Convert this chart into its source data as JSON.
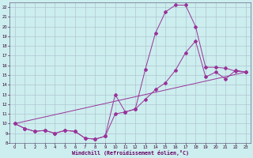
{
  "xlabel": "Windchill (Refroidissement éolien,°C)",
  "bg_color": "#cceeee",
  "grid_color": "#aabbcc",
  "line_color": "#993399",
  "xlim": [
    -0.5,
    23.5
  ],
  "ylim": [
    8,
    22.5
  ],
  "xticks": [
    0,
    1,
    2,
    3,
    4,
    5,
    6,
    7,
    8,
    9,
    10,
    11,
    12,
    13,
    14,
    15,
    16,
    17,
    18,
    19,
    20,
    21,
    22,
    23
  ],
  "yticks": [
    8,
    9,
    10,
    11,
    12,
    13,
    14,
    15,
    16,
    17,
    18,
    19,
    20,
    21,
    22
  ],
  "line1_x": [
    0,
    1,
    2,
    3,
    4,
    5,
    6,
    7,
    8,
    9,
    10,
    11,
    12,
    13,
    14,
    15,
    16,
    17,
    18,
    19,
    20,
    21,
    22,
    23
  ],
  "line1_y": [
    10,
    9.5,
    9.2,
    9.3,
    9.0,
    9.3,
    9.2,
    8.5,
    8.4,
    8.7,
    13.0,
    11.2,
    11.5,
    15.6,
    19.3,
    21.5,
    22.2,
    22.2,
    20.0,
    15.8,
    15.8,
    15.7,
    15.4,
    15.3
  ],
  "line2_x": [
    0,
    1,
    2,
    3,
    4,
    5,
    6,
    7,
    8,
    9,
    10,
    11,
    12,
    13,
    14,
    15,
    16,
    17,
    18,
    19,
    20,
    21,
    22,
    23
  ],
  "line2_y": [
    10,
    9.5,
    9.2,
    9.3,
    9.0,
    9.3,
    9.2,
    8.5,
    8.4,
    8.7,
    11.0,
    11.2,
    11.5,
    12.5,
    13.5,
    14.2,
    15.5,
    17.3,
    18.5,
    14.8,
    15.3,
    14.6,
    15.5,
    15.3
  ],
  "line3_x": [
    0,
    23
  ],
  "line3_y": [
    10,
    15.3
  ]
}
